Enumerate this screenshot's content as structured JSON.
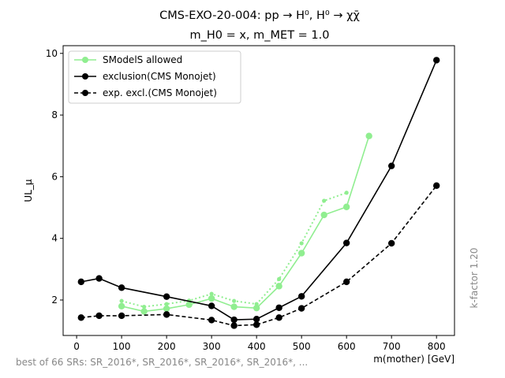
{
  "chart_data": {
    "type": "line",
    "title_line1": "CMS-EXO-20-004: pp → H⁰, H⁰ → χχ̄",
    "title_line2": "m_H0 = x, m_MET = 1.0",
    "xlabel": "m(mother) [GeV]",
    "ylabel": "UL_μ",
    "xlim": [
      -30,
      840
    ],
    "ylim": [
      0.85,
      10.25
    ],
    "xticks": [
      0,
      100,
      200,
      300,
      400,
      500,
      600,
      700,
      800
    ],
    "yticks": [
      2,
      4,
      6,
      8,
      10
    ],
    "legend_position": "top-left",
    "footnote": "best of 66 SRs: SR_2016*, SR_2016*, SR_2016*, SR_2016*, ...",
    "side_note": "k-factor 1.20",
    "colors": {
      "allowed": "#90ee90",
      "exclusion": "#000000"
    },
    "series": [
      {
        "name": "SModelS allowed",
        "style": "solid",
        "color": "#90ee90",
        "x": [
          100,
          150,
          200,
          250,
          300,
          350,
          400,
          450,
          500,
          550,
          600,
          650
        ],
        "y": [
          1.8,
          1.63,
          1.72,
          1.85,
          2.05,
          1.78,
          1.74,
          2.45,
          3.52,
          4.76,
          5.02,
          7.32
        ]
      },
      {
        "name": "",
        "style": "dotted",
        "color": "#90ee90",
        "x": [
          100,
          150,
          200,
          250,
          300,
          350,
          400,
          450,
          500,
          550,
          600
        ],
        "y": [
          1.97,
          1.78,
          1.87,
          1.98,
          2.2,
          1.97,
          1.87,
          2.68,
          3.84,
          5.22,
          5.48
        ]
      },
      {
        "name": "exclusion(CMS Monojet)",
        "style": "solid",
        "color": "#000000",
        "x": [
          10,
          50,
          100,
          200,
          300,
          350,
          400,
          450,
          500,
          600,
          700,
          800
        ],
        "y": [
          2.59,
          2.7,
          2.4,
          2.11,
          1.81,
          1.36,
          1.38,
          1.75,
          2.12,
          3.85,
          6.35,
          9.78
        ]
      },
      {
        "name": "exp. excl.(CMS Monojet)",
        "style": "dashed",
        "color": "#000000",
        "x": [
          10,
          50,
          100,
          200,
          300,
          350,
          400,
          450,
          500,
          600,
          700,
          800
        ],
        "y": [
          1.43,
          1.49,
          1.49,
          1.53,
          1.35,
          1.17,
          1.2,
          1.43,
          1.73,
          2.59,
          3.84,
          5.71
        ]
      }
    ]
  }
}
